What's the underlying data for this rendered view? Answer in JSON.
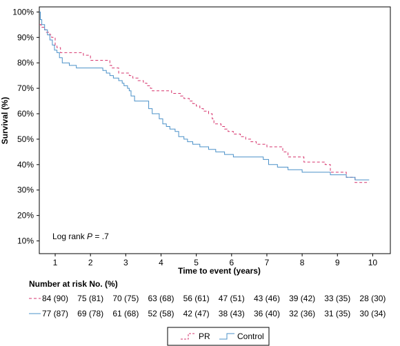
{
  "chart_data": {
    "type": "line",
    "title": "",
    "xlabel": "Time to event (years)",
    "ylabel": "Survival (%)",
    "xlim": [
      0.55,
      10.5
    ],
    "ylim": [
      5,
      102
    ],
    "xticks": [
      "1",
      "2",
      "3",
      "4",
      "5",
      "6",
      "7",
      "8",
      "9",
      "10"
    ],
    "yticks": [
      "10%",
      "20%",
      "30%",
      "40%",
      "50%",
      "60%",
      "70%",
      "80%",
      "90%",
      "100%"
    ],
    "grid": false,
    "annotation": {
      "prefix": "Log rank ",
      "italic": "P",
      "suffix": " = .7"
    },
    "series": [
      {
        "name": "PR",
        "color": "#d6336c",
        "dash": true,
        "x": [
          0.55,
          0.6,
          0.7,
          0.75,
          0.85,
          0.9,
          1.0,
          1.05,
          1.15,
          1.3,
          1.5,
          1.8,
          2.0,
          2.4,
          2.55,
          2.6,
          2.8,
          3.0,
          3.1,
          3.2,
          3.35,
          3.5,
          3.6,
          3.7,
          3.75,
          4.1,
          4.3,
          4.4,
          4.55,
          4.65,
          4.8,
          4.9,
          5.0,
          5.1,
          5.2,
          5.35,
          5.45,
          5.5,
          5.7,
          5.8,
          5.9,
          6.05,
          6.25,
          6.4,
          6.55,
          6.7,
          6.9,
          7.0,
          7.25,
          7.45,
          7.6,
          7.9,
          8.05,
          8.35,
          8.65,
          8.8,
          9.0,
          9.25,
          9.5,
          9.9
        ],
        "y": [
          95,
          94,
          93,
          92,
          91,
          90,
          87,
          86,
          84,
          84,
          84,
          83,
          81,
          81,
          79,
          78,
          76,
          76,
          75,
          74,
          73,
          72,
          71,
          70,
          69,
          69,
          68,
          68,
          67,
          66,
          65,
          64,
          63,
          62,
          61,
          60,
          58,
          56,
          55,
          54,
          53,
          52,
          51,
          50,
          49,
          48,
          48,
          47,
          47,
          45,
          43,
          43,
          41,
          41,
          40,
          37,
          37,
          35,
          33,
          33
        ]
      },
      {
        "name": "Control",
        "color": "#4a90c8",
        "dash": false,
        "x": [
          0.55,
          0.58,
          0.62,
          0.7,
          0.78,
          0.85,
          0.92,
          0.98,
          1.05,
          1.12,
          1.2,
          1.4,
          1.6,
          2.3,
          2.35,
          2.45,
          2.55,
          2.65,
          2.8,
          2.9,
          2.95,
          3.05,
          3.1,
          3.15,
          3.25,
          3.6,
          3.65,
          3.75,
          3.85,
          3.95,
          4.05,
          4.15,
          4.25,
          4.4,
          4.5,
          4.65,
          4.75,
          4.9,
          5.1,
          5.35,
          5.55,
          5.8,
          6.05,
          6.6,
          6.9,
          7.05,
          7.3,
          7.6,
          8.0,
          8.8,
          9.0,
          9.25,
          9.5,
          9.55,
          9.75,
          9.9
        ],
        "y": [
          100,
          97,
          95,
          93,
          91,
          89,
          87,
          85,
          84,
          82,
          80,
          79,
          78,
          78,
          77,
          76,
          75,
          74,
          73,
          72,
          71,
          70,
          69,
          67,
          65,
          65,
          62,
          60,
          60,
          58,
          56,
          55,
          54,
          53,
          51,
          50,
          49,
          48,
          47,
          46,
          45,
          44,
          43,
          43,
          42,
          40,
          39,
          38,
          37,
          36,
          36,
          35,
          34,
          34,
          34,
          34
        ]
      }
    ]
  },
  "risk_table": {
    "title": "Number at risk No. (%)",
    "rows": [
      {
        "name": "PR",
        "values": [
          "84 (90)",
          "75 (81)",
          "70 (75)",
          "63 (68)",
          "56 (61)",
          "47 (51)",
          "43 (46)",
          "39 (42)",
          "33 (35)",
          "28 (30)"
        ]
      },
      {
        "name": "Control",
        "values": [
          "77 (87)",
          "69 (78)",
          "61 (68)",
          "52 (58)",
          "42 (47)",
          "38 (43)",
          "36 (40)",
          "32 (36)",
          "31 (35)",
          "30 (34)"
        ]
      }
    ]
  },
  "legend": {
    "placement": "bottom-center",
    "items": [
      {
        "label": "PR",
        "color": "#d6336c",
        "dash": true
      },
      {
        "label": "Control",
        "color": "#4a90c8",
        "dash": false
      }
    ]
  }
}
